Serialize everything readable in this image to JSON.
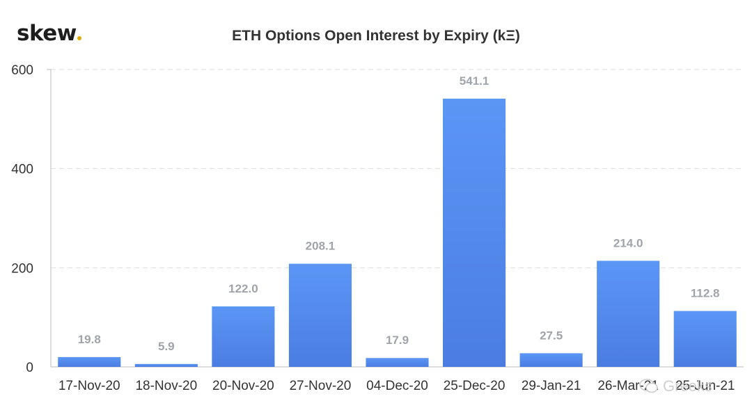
{
  "header": {
    "logo_text": "skew",
    "title": "ETH Options Open Interest by Expiry (kΞ)"
  },
  "watermark": {
    "text": "Greeks",
    "icon": "wechat-icon"
  },
  "colors": {
    "bar_top": "#5b96f5",
    "bar_bottom": "#4b7de0",
    "label": "#a0a4aa",
    "grid": "#dddddd",
    "logo_dot": "#e0a800"
  },
  "chart_data": {
    "type": "bar",
    "title": "ETH Options Open Interest by Expiry (kΞ)",
    "xlabel": "",
    "ylabel": "",
    "ylim": [
      0,
      600
    ],
    "yticks": [
      0,
      200,
      400,
      600
    ],
    "grid": true,
    "categories": [
      "17-Nov-20",
      "18-Nov-20",
      "20-Nov-20",
      "27-Nov-20",
      "04-Dec-20",
      "25-Dec-20",
      "29-Jan-21",
      "26-Mar-21",
      "25-Jun-21"
    ],
    "values": [
      19.8,
      5.9,
      122.0,
      208.1,
      17.9,
      541.1,
      27.5,
      214.0,
      112.8
    ],
    "data_labels": [
      "19.8",
      "5.9",
      "122.0",
      "208.1",
      "17.9",
      "541.1",
      "27.5",
      "214.0",
      "112.8"
    ]
  }
}
